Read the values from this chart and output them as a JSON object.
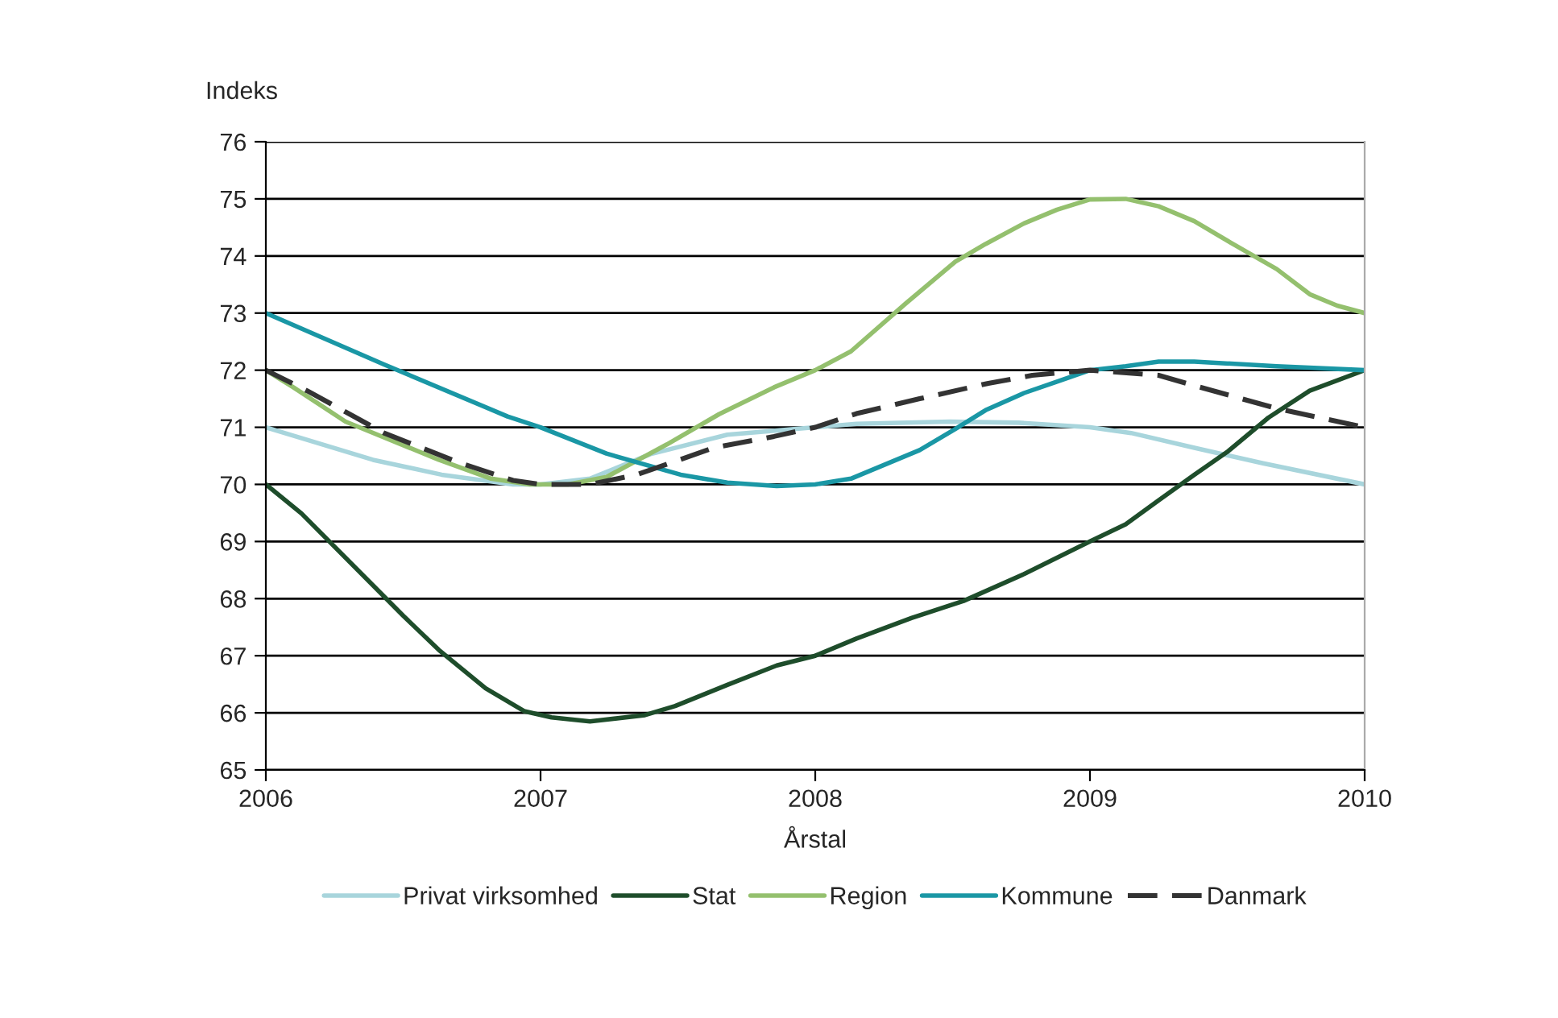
{
  "chart_data": {
    "type": "line",
    "ylabel": "Indeks",
    "xlabel": "Årstal",
    "series": [
      {
        "name": "Privat virksomhed",
        "color": "#a8d5dc",
        "x": [
          2006,
          2006.39,
          2006.64,
          2006.9,
          2007,
          2007.18,
          2007.4,
          2007.68,
          2008,
          2008.15,
          2008.49,
          2008.74,
          2009,
          2009.15,
          2009.38,
          2009.63,
          2010
        ],
        "values": [
          71,
          70.43,
          70.17,
          70.0,
          70,
          70.1,
          70.53,
          70.87,
          71.0,
          71.06,
          71.1,
          71.08,
          71.0,
          70.9,
          70.64,
          70.37,
          70.0
        ]
      },
      {
        "name": "Stat",
        "color": "#1e4d2b",
        "x": [
          2006,
          2006.13,
          2006.5,
          2006.63,
          2006.8,
          2006.94,
          2007.04,
          2007.18,
          2007.38,
          2007.49,
          2007.68,
          2007.86,
          2008,
          2008.15,
          2008.35,
          2008.54,
          2008.76,
          2009,
          2009.13,
          2009.25,
          2009.38,
          2009.5,
          2009.65,
          2009.8,
          2010
        ],
        "values": [
          70,
          69.49,
          67.7,
          67.1,
          66.43,
          66.03,
          65.92,
          65.85,
          65.96,
          66.12,
          66.49,
          66.83,
          67.0,
          67.3,
          67.66,
          67.96,
          68.43,
          69.0,
          69.3,
          69.72,
          70.17,
          70.57,
          71.17,
          71.64,
          72.0
        ]
      },
      {
        "name": "Region",
        "color": "#94c06e",
        "x": [
          2006,
          2006.1,
          2006.29,
          2006.63,
          2006.82,
          2006.96,
          2007.1,
          2007.24,
          2007.46,
          2007.65,
          2007.85,
          2008,
          2008.13,
          2008.33,
          2008.51,
          2008.62,
          2008.76,
          2008.88,
          2009,
          2009.13,
          2009.25,
          2009.38,
          2009.51,
          2009.68,
          2009.8,
          2009.9,
          2010
        ],
        "values": [
          72,
          71.7,
          71.1,
          70.43,
          70.1,
          70.0,
          70.0,
          70.13,
          70.7,
          71.23,
          71.7,
          72.0,
          72.33,
          73.17,
          73.9,
          74.21,
          74.57,
          74.81,
          74.99,
          75.0,
          74.87,
          74.61,
          74.24,
          73.77,
          73.33,
          73.13,
          73.0
        ]
      },
      {
        "name": "Kommune",
        "color": "#1a97a5",
        "x": [
          2006,
          2006.43,
          2006.88,
          2007,
          2007.24,
          2007.51,
          2007.68,
          2007.86,
          2008,
          2008.13,
          2008.38,
          2008.51,
          2008.62,
          2008.76,
          2008.88,
          2009,
          2009.13,
          2009.25,
          2009.38,
          2009.68,
          2010
        ],
        "values": [
          73,
          72.1,
          71.19,
          71.0,
          70.54,
          70.17,
          70.03,
          69.97,
          70.0,
          70.1,
          70.6,
          70.97,
          71.3,
          71.6,
          71.8,
          72.0,
          72.07,
          72.15,
          72.15,
          72.07,
          72.0
        ]
      },
      {
        "name": "Danmark",
        "color": "#333333",
        "line_style": "dashed",
        "x": [
          2006,
          2006.15,
          2006.43,
          2006.71,
          2006.9,
          2007,
          2007.18,
          2007.35,
          2007.63,
          2007.85,
          2008,
          2008.15,
          2008.38,
          2008.63,
          2008.79,
          2009,
          2009.25,
          2009.38,
          2009.68,
          2010
        ],
        "values": [
          72,
          71.64,
          70.9,
          70.37,
          70.07,
          70.0,
          70.0,
          70.17,
          70.64,
          70.84,
          71.0,
          71.24,
          71.5,
          71.77,
          71.91,
          72.0,
          71.91,
          71.73,
          71.33,
          71.0
        ]
      }
    ],
    "xlim": [
      2006,
      2010
    ],
    "xticks": [
      2006,
      2007,
      2008,
      2009,
      2010
    ],
    "ylim": [
      65,
      76
    ],
    "yticks": [
      65,
      66,
      67,
      68,
      69,
      70,
      71,
      72,
      73,
      74,
      75,
      76
    ],
    "grid": "y",
    "legend": "bottom",
    "marker": "none"
  }
}
